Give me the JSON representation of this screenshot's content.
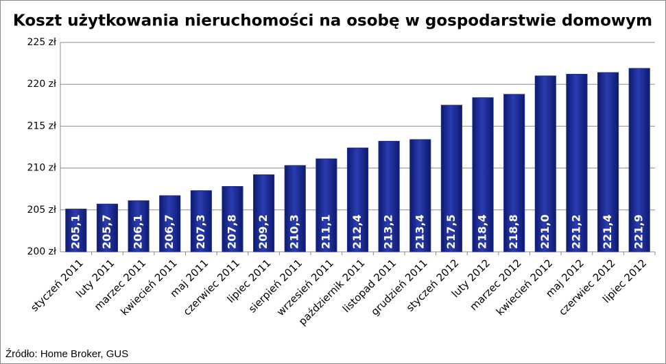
{
  "chart_data": {
    "type": "bar",
    "title": "Koszt użytkowania nieruchomości na osobę w gospodarstwie domowym",
    "source": "Źródło: Home Broker, GUS",
    "categories": [
      "styczeń 2011",
      "luty 2011",
      "marzec 2011",
      "kwiecień 2011",
      "maj 2011",
      "czerwiec 2011",
      "lipiec 2011",
      "sierpień 2011",
      "wrzesień 2011",
      "październik 2011",
      "listopad 2011",
      "grudzień 2011",
      "styczeń 2012",
      "luty 2012",
      "marzec 2012",
      "kwiecień 2012",
      "maj 2012",
      "czerwiec 2012",
      "lipiec 2012"
    ],
    "values": [
      205.1,
      205.7,
      206.1,
      206.7,
      207.3,
      207.8,
      209.2,
      210.3,
      211.1,
      212.4,
      213.2,
      213.4,
      217.5,
      218.4,
      218.8,
      221.0,
      221.2,
      221.4,
      221.9
    ],
    "value_labels": [
      "205,1",
      "205,7",
      "206,1",
      "206,7",
      "207,3",
      "207,8",
      "209,2",
      "210,3",
      "211,1",
      "212,4",
      "213,2",
      "213,4",
      "217,5",
      "218,4",
      "218,8",
      "221,0",
      "221,2",
      "221,4",
      "221,9"
    ],
    "color": "#1c2c94",
    "ylim": [
      200,
      225
    ],
    "yticks": [
      {
        "value": 200,
        "label": "200 zł"
      },
      {
        "value": 205,
        "label": "205 zł"
      },
      {
        "value": 210,
        "label": "210 zł"
      },
      {
        "value": 215,
        "label": "215 zł"
      },
      {
        "value": 220,
        "label": "220 zł"
      },
      {
        "value": 225,
        "label": "225 zł"
      }
    ],
    "grid": true
  }
}
